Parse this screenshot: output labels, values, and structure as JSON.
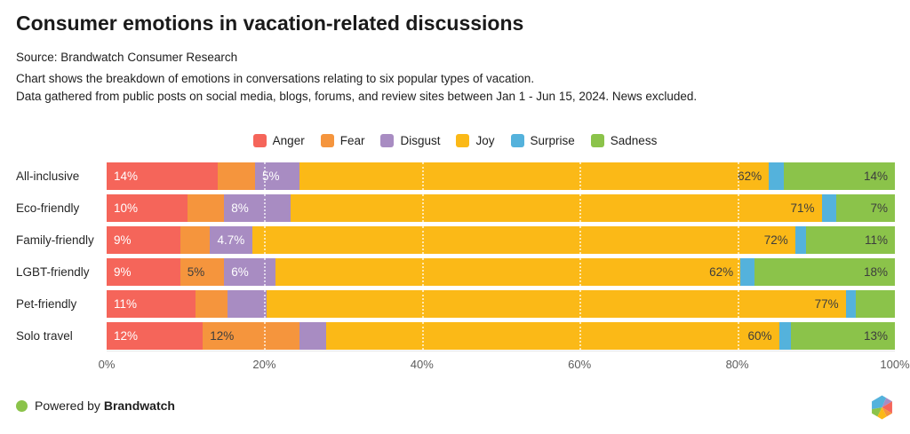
{
  "header": {
    "title": "Consumer emotions in vacation-related discussions",
    "source": "Source: Brandwatch Consumer Research",
    "description_line1": "Chart shows the breakdown of emotions in conversations relating to six popular types of vacation.",
    "description_line2": "Data gathered from public posts on social media, blogs, forums, and review sites between Jan 1 - Jun 15, 2024. News excluded."
  },
  "chart_data": {
    "type": "bar",
    "stacked": true,
    "orientation": "horizontal",
    "legend_position": "top",
    "categories": [
      "All-inclusive",
      "Eco-friendly",
      "Family-friendly",
      "LGBT-friendly",
      "Pet-friendly",
      "Solo travel"
    ],
    "series": [
      {
        "name": "Anger",
        "color": "#f5655a",
        "label_color": "#ffffff",
        "label_align": "left",
        "values": [
          14,
          10,
          9,
          9,
          11,
          12
        ],
        "labels": [
          "14%",
          "10%",
          "9%",
          "9%",
          "11%",
          "12%"
        ]
      },
      {
        "name": "Fear",
        "color": "#f5953d",
        "label_color": "#3d3d3d",
        "label_align": "left",
        "values": [
          4,
          4,
          3,
          5,
          3.3,
          12
        ],
        "labels": [
          null,
          null,
          null,
          "5%",
          null,
          "12%"
        ]
      },
      {
        "name": "Disgust",
        "color": "#a88cc2",
        "label_color": "#ffffff",
        "label_align": "left",
        "values": [
          5,
          8,
          4.7,
          6,
          4.3,
          2.7
        ],
        "labels": [
          "5%",
          "8%",
          "4.7%",
          "6%",
          null,
          null
        ]
      },
      {
        "name": "Joy",
        "color": "#fbb917",
        "label_color": "#3d3d3d",
        "label_align": "right",
        "values": [
          62,
          71,
          72,
          62,
          77,
          60
        ],
        "labels": [
          "62%",
          "71%",
          "72%",
          "62%",
          "77%",
          "60%"
        ]
      },
      {
        "name": "Surprise",
        "color": "#54b2dc",
        "label_color": "#ffffff",
        "label_align": "left",
        "values": [
          1,
          1,
          0.5,
          1,
          0.4,
          0.7
        ],
        "labels": [
          null,
          null,
          null,
          null,
          null,
          null
        ]
      },
      {
        "name": "Sadness",
        "color": "#8bc34a",
        "label_color": "#3d3d3d",
        "label_align": "right",
        "values": [
          14,
          7,
          11,
          18,
          4.3,
          13
        ],
        "labels": [
          "14%",
          "7%",
          "11%",
          "18%",
          null,
          "13%"
        ]
      }
    ],
    "x_axis": {
      "min": 0,
      "max": 100,
      "ticks": [
        "0%",
        "20%",
        "40%",
        "60%",
        "80%",
        "100%"
      ]
    },
    "gridlines": [
      20,
      40,
      60,
      80
    ],
    "grid_style": "dotted-white"
  },
  "footer": {
    "powered_by_prefix": "Powered by",
    "brand_name": "Brandwatch",
    "dot_color": "#8bc34a",
    "logo_colors": {
      "blue": "#54b2dc",
      "purple": "#a88cc2",
      "red": "#f5655a",
      "orange": "#f5953d",
      "yellow": "#fbb917",
      "green": "#8bc34a"
    }
  }
}
